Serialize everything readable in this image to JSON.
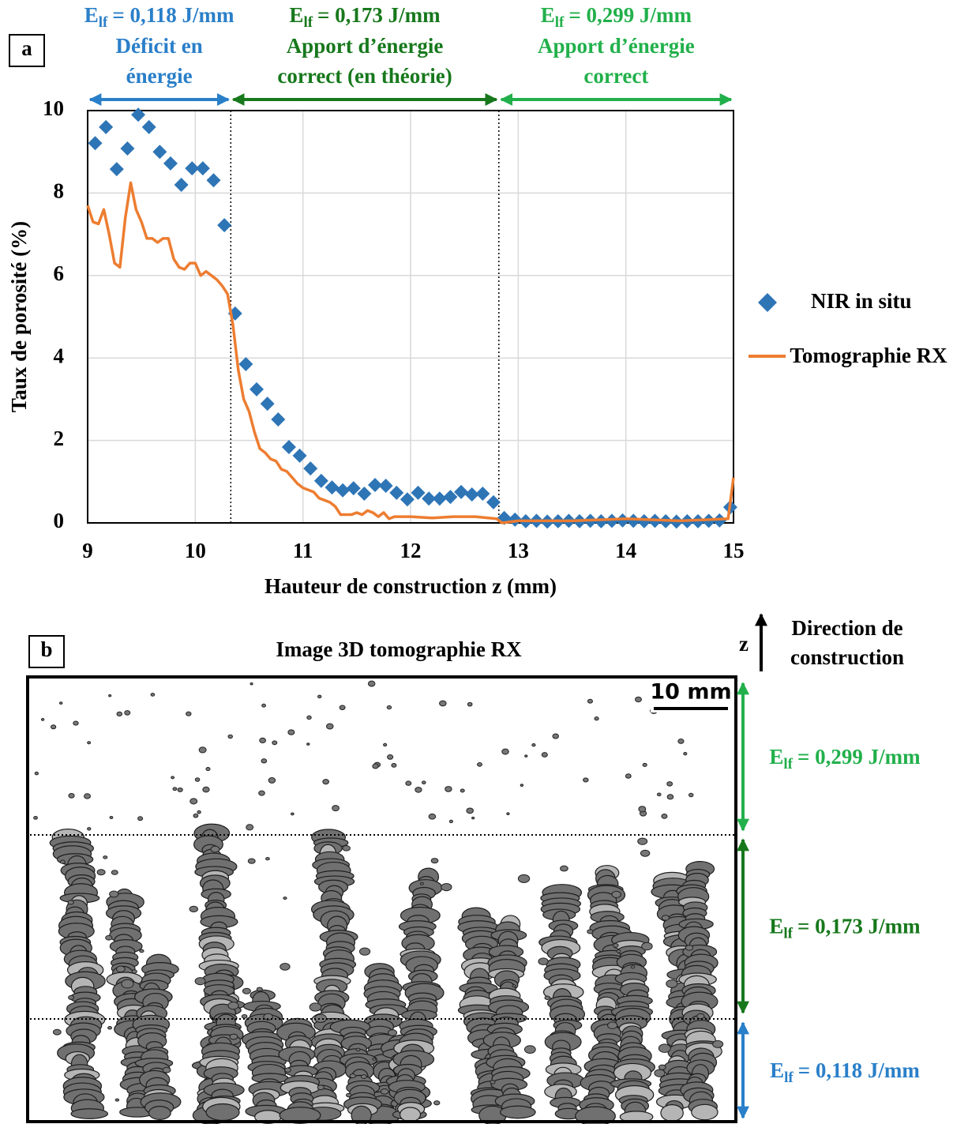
{
  "chart_data": {
    "type": "scatter-line",
    "xlabel": "Hauteur de construction z (mm)",
    "ylabel": "Taux de porosité (%)",
    "xlim": [
      9,
      15
    ],
    "ylim": [
      0,
      10
    ],
    "xticks": [
      9,
      10,
      11,
      12,
      13,
      14,
      15
    ],
    "yticks": [
      0,
      2,
      4,
      6,
      8,
      10
    ],
    "grid": true,
    "legend": "right",
    "series": [
      {
        "name": "NIR in situ",
        "color": "#2e75b6",
        "marker": "diamond",
        "x": [
          9.07,
          9.17,
          9.27,
          9.37,
          9.47,
          9.57,
          9.67,
          9.77,
          9.87,
          9.97,
          10.07,
          10.17,
          10.27,
          10.37,
          10.47,
          10.57,
          10.67,
          10.77,
          10.87,
          10.97,
          11.07,
          11.17,
          11.27,
          11.37,
          11.47,
          11.57,
          11.67,
          11.77,
          11.87,
          11.97,
          12.07,
          12.17,
          12.27,
          12.37,
          12.47,
          12.57,
          12.67,
          12.77,
          12.87,
          12.97,
          13.07,
          13.17,
          13.27,
          13.37,
          13.47,
          13.57,
          13.67,
          13.77,
          13.87,
          13.97,
          14.07,
          14.17,
          14.27,
          14.37,
          14.47,
          14.57,
          14.67,
          14.77,
          14.87,
          14.97
        ],
        "values": [
          9.21,
          9.6,
          8.58,
          9.08,
          9.9,
          9.6,
          9.0,
          8.72,
          8.2,
          8.6,
          8.6,
          8.31,
          7.22,
          5.08,
          3.85,
          3.24,
          2.89,
          2.51,
          1.84,
          1.63,
          1.32,
          1.02,
          0.86,
          0.79,
          0.84,
          0.71,
          0.92,
          0.9,
          0.73,
          0.57,
          0.73,
          0.59,
          0.59,
          0.63,
          0.75,
          0.69,
          0.71,
          0.5,
          0.12,
          0.08,
          0.04,
          0.05,
          0.03,
          0.04,
          0.05,
          0.04,
          0.05,
          0.04,
          0.05,
          0.06,
          0.05,
          0.04,
          0.05,
          0.04,
          0.03,
          0.04,
          0.04,
          0.05,
          0.06,
          0.38
        ]
      },
      {
        "name": "Tomographie RX",
        "color": "#ed7d31",
        "marker": "line",
        "x": [
          9.0,
          9.05,
          9.1,
          9.15,
          9.2,
          9.25,
          9.3,
          9.35,
          9.4,
          9.45,
          9.5,
          9.55,
          9.6,
          9.65,
          9.7,
          9.75,
          9.8,
          9.85,
          9.9,
          9.95,
          10.0,
          10.05,
          10.1,
          10.15,
          10.2,
          10.25,
          10.3,
          10.35,
          10.4,
          10.45,
          10.5,
          10.55,
          10.6,
          10.65,
          10.7,
          10.75,
          10.8,
          10.85,
          10.9,
          10.95,
          11.0,
          11.05,
          11.1,
          11.15,
          11.2,
          11.25,
          11.3,
          11.35,
          11.4,
          11.45,
          11.5,
          11.55,
          11.6,
          11.65,
          11.7,
          11.75,
          11.8,
          11.85,
          11.9,
          12.0,
          12.2,
          12.4,
          12.6,
          12.8,
          12.85,
          13.0,
          13.5,
          14.0,
          14.5,
          14.95,
          15.0
        ],
        "values": [
          7.7,
          7.3,
          7.25,
          7.6,
          7.0,
          6.3,
          6.2,
          7.4,
          8.25,
          7.6,
          7.3,
          6.9,
          6.9,
          6.8,
          6.9,
          6.9,
          6.4,
          6.2,
          6.15,
          6.3,
          6.3,
          6.0,
          6.1,
          6.0,
          5.9,
          5.75,
          5.55,
          4.8,
          3.7,
          3.0,
          2.7,
          2.2,
          1.8,
          1.7,
          1.55,
          1.5,
          1.3,
          1.25,
          1.1,
          0.95,
          0.85,
          0.8,
          0.75,
          0.6,
          0.55,
          0.5,
          0.4,
          0.2,
          0.2,
          0.2,
          0.25,
          0.2,
          0.3,
          0.25,
          0.15,
          0.25,
          0.1,
          0.15,
          0.15,
          0.15,
          0.12,
          0.15,
          0.15,
          0.1,
          0.0,
          0.05,
          0.05,
          0.1,
          0.05,
          0.1,
          1.1
        ]
      }
    ],
    "regions": [
      {
        "start": 9,
        "end": 10.33,
        "color": "#2a7fc9",
        "symbol": "E",
        "subscript": "lf",
        "energy": "= 0,118 J/mm",
        "description": [
          "Déficit en",
          "énergie"
        ]
      },
      {
        "start": 10.33,
        "end": 12.82,
        "color": "#17781c",
        "symbol": "E",
        "subscript": "lf",
        "energy": "= 0,173 J/mm",
        "description": [
          "Apport d’énergie",
          "correct (en théorie)"
        ]
      },
      {
        "start": 12.82,
        "end": 15,
        "color": "#22b04b",
        "symbol": "E",
        "subscript": "lf",
        "energy": "= 0,299 J/mm",
        "description": [
          "Apport d’énergie",
          "correct"
        ]
      }
    ]
  },
  "panel_labels": [
    "a",
    "b"
  ],
  "image_panel": {
    "title": "Image 3D tomographie RX",
    "scale_bar": "10 mm",
    "axis": "z",
    "direction": [
      "Direction de",
      "construction"
    ],
    "zones": [
      {
        "symbol": "E",
        "subscript": "lf",
        "energy": "= 0,299 J/mm",
        "color": "#22b04b"
      },
      {
        "symbol": "E",
        "subscript": "lf",
        "energy": "= 0,173 J/mm",
        "color": "#17781c"
      },
      {
        "symbol": "E",
        "subscript": "lf",
        "energy": "= 0,118 J/mm",
        "color": "#2a7fc9"
      }
    ]
  }
}
